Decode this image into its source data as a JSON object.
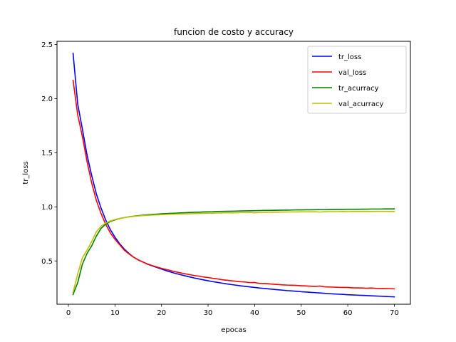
{
  "chart_data": {
    "type": "line",
    "title": "funcion de costo y accuracy",
    "xlabel": "epocas",
    "ylabel": "tr_loss",
    "xlim": [
      -2.45,
      73.45
    ],
    "ylim": [
      0.1,
      2.53
    ],
    "xticks": [
      0,
      10,
      20,
      30,
      40,
      50,
      60,
      70
    ],
    "yticks": [
      0.5,
      1.0,
      1.5,
      2.0,
      2.5
    ],
    "grid": false,
    "legend_position": "top-right",
    "series": [
      {
        "name": "tr_loss",
        "color": "#0000ff",
        "x": [
          1,
          2,
          3,
          4,
          5,
          6,
          7,
          8,
          9,
          10,
          11,
          12,
          13,
          14,
          15,
          16,
          17,
          18,
          19,
          20,
          21,
          22,
          23,
          24,
          25,
          26,
          27,
          28,
          29,
          30,
          31,
          32,
          33,
          34,
          35,
          36,
          37,
          38,
          39,
          40,
          41,
          42,
          43,
          44,
          45,
          46,
          47,
          48,
          49,
          50,
          51,
          52,
          53,
          54,
          55,
          56,
          57,
          58,
          59,
          60,
          61,
          62,
          63,
          64,
          65,
          66,
          67,
          68,
          69,
          70
        ],
        "y": [
          2.42,
          1.95,
          1.72,
          1.48,
          1.29,
          1.12,
          0.99,
          0.88,
          0.79,
          0.72,
          0.66,
          0.61,
          0.57,
          0.535,
          0.51,
          0.49,
          0.47,
          0.455,
          0.44,
          0.425,
          0.41,
          0.397,
          0.385,
          0.374,
          0.363,
          0.353,
          0.343,
          0.334,
          0.325,
          0.317,
          0.309,
          0.302,
          0.295,
          0.288,
          0.282,
          0.276,
          0.27,
          0.265,
          0.26,
          0.255,
          0.25,
          0.246,
          0.242,
          0.238,
          0.234,
          0.23,
          0.226,
          0.223,
          0.22,
          0.216,
          0.213,
          0.21,
          0.207,
          0.204,
          0.201,
          0.198,
          0.195,
          0.193,
          0.191,
          0.188,
          0.186,
          0.184,
          0.182,
          0.18,
          0.178,
          0.176,
          0.174,
          0.172,
          0.17,
          0.168
        ]
      },
      {
        "name": "val_loss",
        "color": "#ff0000",
        "x": [
          1,
          2,
          3,
          4,
          5,
          6,
          7,
          8,
          9,
          10,
          11,
          12,
          13,
          14,
          15,
          16,
          17,
          18,
          19,
          20,
          21,
          22,
          23,
          24,
          25,
          26,
          27,
          28,
          29,
          30,
          31,
          32,
          33,
          34,
          35,
          36,
          37,
          38,
          39,
          40,
          41,
          42,
          43,
          44,
          45,
          46,
          47,
          48,
          49,
          50,
          51,
          52,
          53,
          54,
          55,
          56,
          57,
          58,
          59,
          60,
          61,
          62,
          63,
          64,
          65,
          66,
          67,
          68,
          69,
          70
        ],
        "y": [
          2.17,
          1.85,
          1.65,
          1.42,
          1.22,
          1.06,
          0.94,
          0.84,
          0.76,
          0.7,
          0.65,
          0.6,
          0.565,
          0.535,
          0.51,
          0.49,
          0.472,
          0.457,
          0.444,
          0.432,
          0.421,
          0.41,
          0.4,
          0.391,
          0.382,
          0.374,
          0.366,
          0.36,
          0.352,
          0.347,
          0.34,
          0.334,
          0.327,
          0.322,
          0.317,
          0.313,
          0.308,
          0.305,
          0.3,
          0.301,
          0.293,
          0.292,
          0.289,
          0.285,
          0.282,
          0.279,
          0.277,
          0.276,
          0.274,
          0.271,
          0.269,
          0.267,
          0.264,
          0.268,
          0.261,
          0.259,
          0.258,
          0.256,
          0.255,
          0.255,
          0.252,
          0.251,
          0.25,
          0.248,
          0.25,
          0.247,
          0.246,
          0.245,
          0.244,
          0.242
        ]
      },
      {
        "name": "tr_acurracy",
        "color": "#008000",
        "x": [
          1,
          2,
          3,
          4,
          5,
          6,
          7,
          8,
          9,
          10,
          11,
          12,
          13,
          14,
          15,
          16,
          17,
          18,
          19,
          20,
          21,
          22,
          23,
          24,
          25,
          26,
          27,
          28,
          29,
          30,
          31,
          32,
          33,
          34,
          35,
          36,
          37,
          38,
          39,
          40,
          41,
          42,
          43,
          44,
          45,
          46,
          47,
          48,
          49,
          50,
          51,
          52,
          53,
          54,
          55,
          56,
          57,
          58,
          59,
          60,
          61,
          62,
          63,
          64,
          65,
          66,
          67,
          68,
          69,
          70
        ],
        "y": [
          0.19,
          0.3,
          0.47,
          0.57,
          0.64,
          0.73,
          0.8,
          0.84,
          0.865,
          0.88,
          0.892,
          0.901,
          0.908,
          0.914,
          0.919,
          0.923,
          0.927,
          0.93,
          0.933,
          0.936,
          0.938,
          0.94,
          0.942,
          0.944,
          0.946,
          0.948,
          0.95,
          0.951,
          0.953,
          0.954,
          0.955,
          0.957,
          0.958,
          0.959,
          0.96,
          0.961,
          0.962,
          0.963,
          0.964,
          0.965,
          0.966,
          0.967,
          0.967,
          0.968,
          0.969,
          0.97,
          0.97,
          0.971,
          0.972,
          0.972,
          0.973,
          0.973,
          0.974,
          0.975,
          0.975,
          0.976,
          0.976,
          0.977,
          0.977,
          0.978,
          0.978,
          0.978,
          0.979,
          0.979,
          0.98,
          0.98,
          0.98,
          0.981,
          0.981,
          0.981
        ]
      },
      {
        "name": "val_acurracy",
        "color": "#bfbf00",
        "x": [
          1,
          2,
          3,
          4,
          5,
          6,
          7,
          8,
          9,
          10,
          11,
          12,
          13,
          14,
          15,
          16,
          17,
          18,
          19,
          20,
          21,
          22,
          23,
          24,
          25,
          26,
          27,
          28,
          29,
          30,
          31,
          32,
          33,
          34,
          35,
          36,
          37,
          38,
          39,
          40,
          41,
          42,
          43,
          44,
          45,
          46,
          47,
          48,
          49,
          50,
          51,
          52,
          53,
          54,
          55,
          56,
          57,
          58,
          59,
          60,
          61,
          62,
          63,
          64,
          65,
          66,
          67,
          68,
          69,
          70
        ],
        "y": [
          0.21,
          0.38,
          0.53,
          0.6,
          0.68,
          0.77,
          0.82,
          0.85,
          0.87,
          0.883,
          0.893,
          0.901,
          0.907,
          0.912,
          0.916,
          0.919,
          0.922,
          0.924,
          0.926,
          0.928,
          0.93,
          0.932,
          0.933,
          0.935,
          0.936,
          0.937,
          0.938,
          0.939,
          0.94,
          0.941,
          0.942,
          0.943,
          0.944,
          0.945,
          0.945,
          0.946,
          0.947,
          0.947,
          0.948,
          0.945,
          0.949,
          0.95,
          0.95,
          0.951,
          0.951,
          0.952,
          0.952,
          0.953,
          0.953,
          0.954,
          0.954,
          0.954,
          0.955,
          0.952,
          0.955,
          0.956,
          0.956,
          0.956,
          0.957,
          0.956,
          0.957,
          0.957,
          0.957,
          0.958,
          0.957,
          0.958,
          0.958,
          0.958,
          0.957,
          0.958
        ]
      }
    ]
  }
}
